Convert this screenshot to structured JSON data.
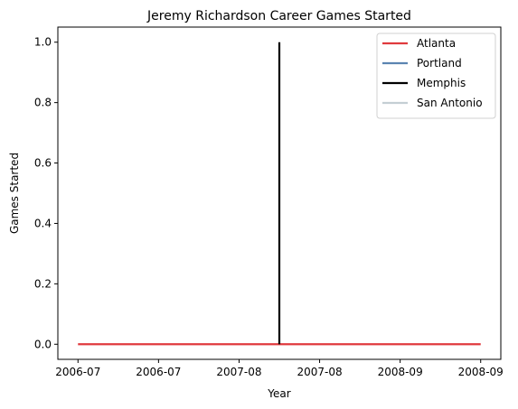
{
  "chart_data": {
    "type": "line",
    "title": "Jeremy Richardson Career Games Started",
    "xlabel": "Year",
    "ylabel": "Games Started",
    "x_tick_labels": [
      "2006-07",
      "2006-07",
      "2007-08",
      "2007-08",
      "2008-09",
      "2008-09"
    ],
    "y_ticks": [
      0.0,
      0.2,
      0.4,
      0.6,
      0.8,
      1.0
    ],
    "y_tick_labels": [
      "0.0",
      "0.2",
      "0.4",
      "0.6",
      "0.8",
      "1.0"
    ],
    "xlim": [
      -0.1,
      2.1
    ],
    "ylim": [
      -0.05,
      1.05
    ],
    "grid": false,
    "legend_position": "upper-right",
    "series": [
      {
        "name": "Atlanta",
        "color": "#e03a3e",
        "x": [
          0,
          2
        ],
        "y": [
          0,
          0
        ]
      },
      {
        "name": "Portland",
        "color": "#5b84b1",
        "x": [],
        "y": []
      },
      {
        "name": "Memphis",
        "color": "#000000",
        "x": [
          1.0,
          1.0
        ],
        "y": [
          0,
          1
        ]
      },
      {
        "name": "San Antonio",
        "color": "#c4ced4",
        "x": [],
        "y": []
      }
    ]
  }
}
